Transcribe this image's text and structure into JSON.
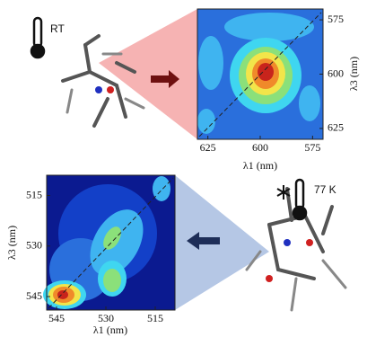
{
  "panels": [
    {
      "condition": "RT",
      "xlabel": "λ1 (nm)",
      "ylabel": "λ3 (nm)",
      "xlim": [
        630,
        570
      ],
      "ylim": [
        570,
        630
      ],
      "xticks": [
        625,
        600,
        575
      ],
      "yticks": [
        575,
        600,
        625
      ]
    },
    {
      "condition": "77 K",
      "xlabel": "λ1 (nm)",
      "ylabel": "λ3 (nm)",
      "xlim": [
        548,
        509
      ],
      "ylim": [
        509,
        549
      ],
      "xticks": [
        545,
        530,
        515
      ],
      "yticks": [
        515,
        530,
        545
      ]
    }
  ]
}
